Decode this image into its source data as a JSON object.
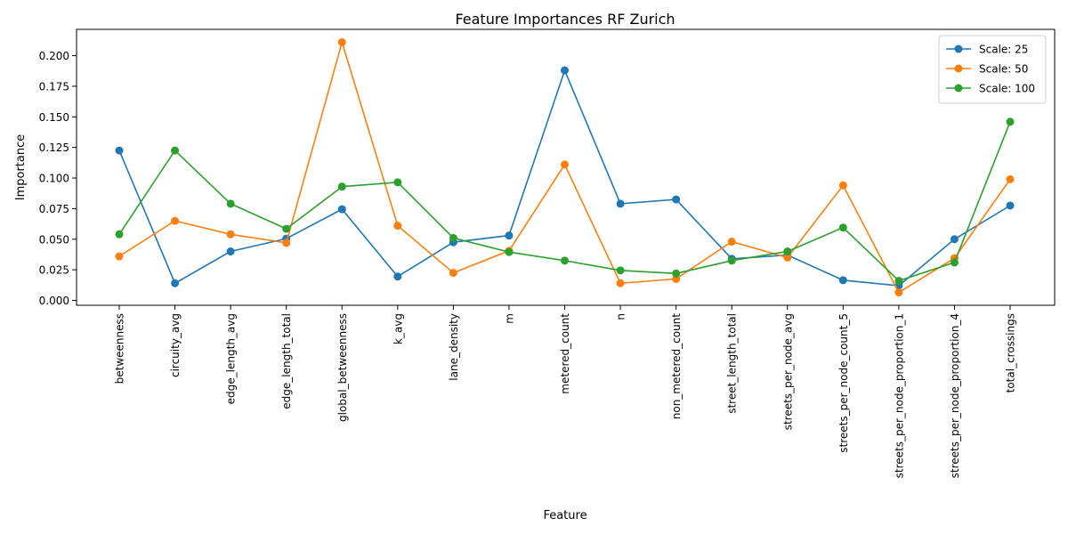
{
  "chart_data": {
    "type": "line",
    "title": "Feature Importances RF Zurich",
    "xlabel": "Feature",
    "ylabel": "Importance",
    "ylim": [
      -0.004,
      0.2215
    ],
    "yticks": [
      "0.000",
      "0.025",
      "0.050",
      "0.075",
      "0.100",
      "0.125",
      "0.150",
      "0.175",
      "0.200"
    ],
    "grid": false,
    "legend_position": "top-right",
    "categories": [
      "betweenness",
      "circuity_avg",
      "edge_length_avg",
      "edge_length_total",
      "global_betweenness",
      "k_avg",
      "lane_density",
      "m",
      "metered_count",
      "n",
      "non_metered_count",
      "street_length_total",
      "streets_per_node_avg",
      "streets_per_node_count_5",
      "streets_per_node_proportion_1",
      "streets_per_node_proportion_4",
      "total_crossings"
    ],
    "series": [
      {
        "name": "Scale: 25",
        "color": "#1f77b4",
        "values": [
          0.1225,
          0.014,
          0.04,
          0.0505,
          0.0745,
          0.0195,
          0.0475,
          0.053,
          0.188,
          0.079,
          0.0825,
          0.034,
          0.037,
          0.0165,
          0.012,
          0.05,
          0.0775
        ]
      },
      {
        "name": "Scale: 50",
        "color": "#ff7f0e",
        "values": [
          0.036,
          0.065,
          0.054,
          0.047,
          0.211,
          0.061,
          0.0225,
          0.0405,
          0.111,
          0.014,
          0.0175,
          0.048,
          0.035,
          0.094,
          0.0065,
          0.0345,
          0.099
        ]
      },
      {
        "name": "Scale: 100",
        "color": "#2ca02c",
        "values": [
          0.054,
          0.1225,
          0.079,
          0.0585,
          0.093,
          0.0965,
          0.051,
          0.0395,
          0.0325,
          0.0245,
          0.022,
          0.0325,
          0.04,
          0.0595,
          0.016,
          0.031,
          0.146
        ]
      }
    ]
  }
}
